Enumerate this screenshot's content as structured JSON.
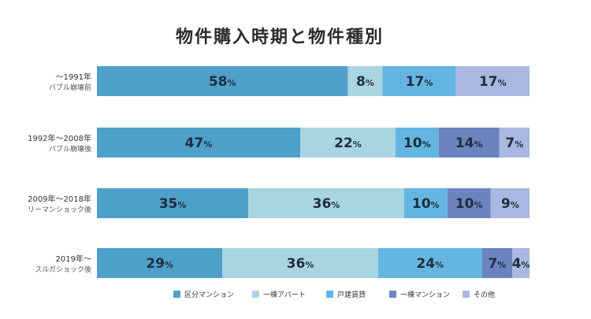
{
  "chart_data": {
    "type": "bar",
    "orientation": "horizontal",
    "stacked": true,
    "normalized_percent": true,
    "title": "物件購入時期と物件種別",
    "categories": [
      {
        "label": "〜1991年",
        "sublabel": "バブル崩壊前"
      },
      {
        "label": "1992年〜2008年",
        "sublabel": "バブル崩壊後"
      },
      {
        "label": "2009年〜2018年",
        "sublabel": "リーマンショック後"
      },
      {
        "label": "2019年〜",
        "sublabel": "スルガショック後"
      }
    ],
    "series": [
      {
        "name": "区分マンション",
        "color": "#4f9fcb",
        "values": [
          58,
          47,
          35,
          29
        ]
      },
      {
        "name": "一棟アパート",
        "color": "#a9d4e2",
        "values": [
          8,
          22,
          36,
          36
        ]
      },
      {
        "name": "戸建賃貸",
        "color": "#64b5e1",
        "values": [
          17,
          10,
          10,
          24
        ]
      },
      {
        "name": "一棟マンション",
        "color": "#6b84c0",
        "values": [
          0,
          14,
          10,
          7
        ]
      },
      {
        "name": "その他",
        "color": "#a9b8e0",
        "values": [
          17,
          7,
          9,
          4
        ]
      }
    ],
    "value_suffix": "%",
    "legend_position": "bottom",
    "grid": false
  }
}
